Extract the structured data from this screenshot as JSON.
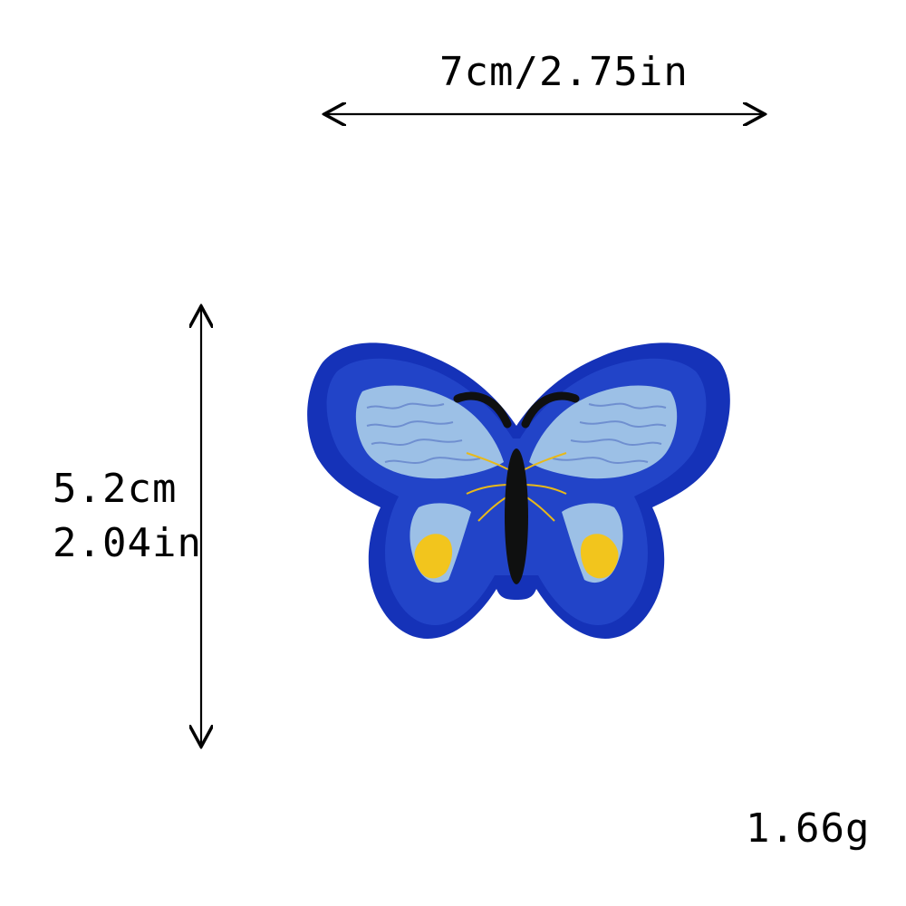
{
  "dimensions": {
    "width_label": "7cm/2.75in",
    "height_label_cm": "5.2cm",
    "height_label_in": "2.04in"
  },
  "weight_label": "1.66g",
  "product": {
    "icon": "butterfly-patch-icon",
    "colors": {
      "wing_dark_blue": "#1532b8",
      "wing_mid_blue": "#2443c9",
      "wing_light_blue": "#9cc0e6",
      "body_black": "#0f1010",
      "spot_yellow": "#f2c51d"
    }
  }
}
